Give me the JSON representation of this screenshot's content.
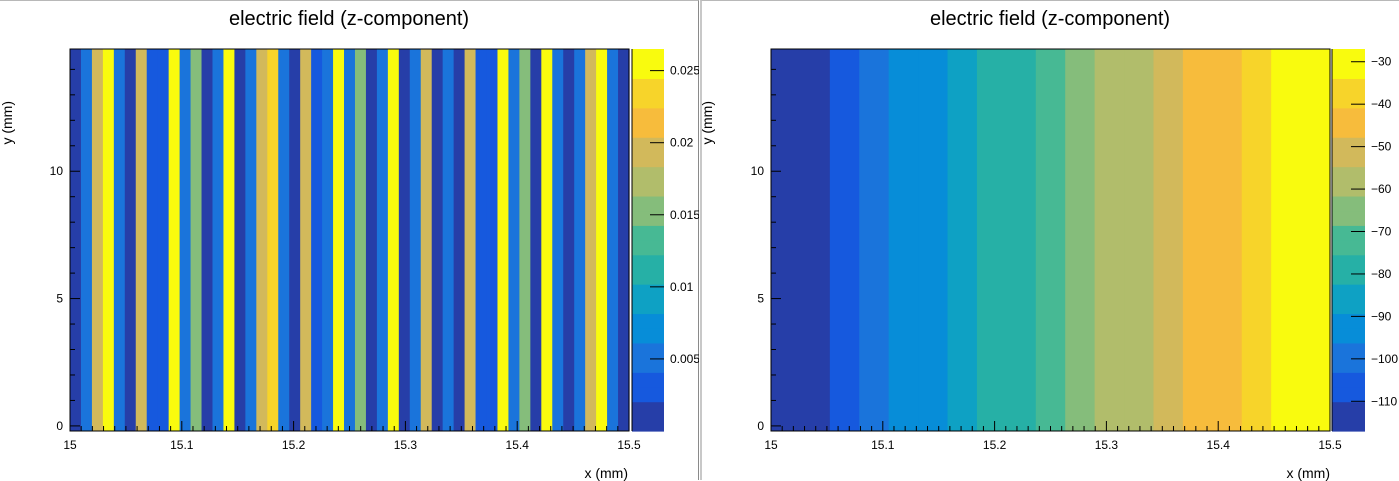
{
  "chart_data": [
    {
      "type": "heatmap",
      "title": "electric field (z-component)",
      "xlabel": "x (mm)",
      "ylabel": "y (mm)",
      "xlim": [
        15.0,
        15.5
      ],
      "ylim": [
        -0.2,
        14.8
      ],
      "x_ticks": [
        "15",
        "15.1",
        "15.2",
        "15.3",
        "15.4",
        "15.5"
      ],
      "x_tick_values": [
        15.0,
        15.1,
        15.2,
        15.3,
        15.4,
        15.5
      ],
      "y_ticks": [
        "0",
        "5",
        "10"
      ],
      "y_tick_values": [
        0,
        5,
        10
      ],
      "colorbar": {
        "range": [
          0.0,
          0.0265
        ],
        "ticks": [
          "0.005",
          "0.01",
          "0.015",
          "0.02",
          "0.025"
        ],
        "tick_values": [
          0.005,
          0.01,
          0.015,
          0.02,
          0.025
        ]
      },
      "columns_per_x": "constant in y",
      "values": [
        0.0015,
        0.0045,
        0.019,
        0.0255,
        0.0045,
        0.0005,
        0.0195,
        0.0025,
        0.004,
        0.0245,
        0.0045,
        0.0155,
        0.0005,
        0.0045,
        0.0265,
        0.0015,
        0.0045,
        0.0195,
        0.0235,
        0.0045,
        0.0005,
        0.0195,
        0.0025,
        0.0045,
        0.0245,
        0.0045,
        0.0155,
        0.0005,
        0.0045,
        0.0255,
        0.0015,
        0.0045,
        0.0195,
        0.0005,
        0.0045,
        0.0015,
        0.0195,
        0.0025,
        0.004,
        0.0245,
        0.0045,
        0.0155,
        0.0005,
        0.0265,
        0.0045,
        0.0015,
        0.0045,
        0.019,
        0.0255,
        0.0045,
        0.0005
      ]
    },
    {
      "type": "heatmap",
      "title": "electric field (z-component)",
      "xlabel": "x (mm)",
      "ylabel": "y (mm)",
      "xlim": [
        15.0,
        15.5
      ],
      "ylim": [
        -0.2,
        14.8
      ],
      "x_ticks": [
        "15",
        "15.1",
        "15.2",
        "15.3",
        "15.4",
        "15.5"
      ],
      "x_tick_values": [
        15.0,
        15.1,
        15.2,
        15.3,
        15.4,
        15.5
      ],
      "y_ticks": [
        "0",
        "5",
        "10"
      ],
      "y_tick_values": [
        0,
        5,
        10
      ],
      "colorbar": {
        "range": [
          -117,
          -27
        ],
        "ticks": [
          "−110",
          "−100",
          "−90",
          "−80",
          "−70",
          "−60",
          "−50",
          "−40",
          "−30"
        ],
        "tick_values": [
          -110,
          -100,
          -90,
          -80,
          -70,
          -60,
          -50,
          -40,
          -30
        ]
      },
      "columns_per_x": "constant in y",
      "values": [
        -115,
        -111,
        -106,
        -101,
        -96,
        -91,
        -86,
        -81,
        -76,
        -71,
        -66,
        -61,
        -56,
        -51,
        -46,
        -41,
        -36,
        -31,
        -28
      ]
    }
  ]
}
